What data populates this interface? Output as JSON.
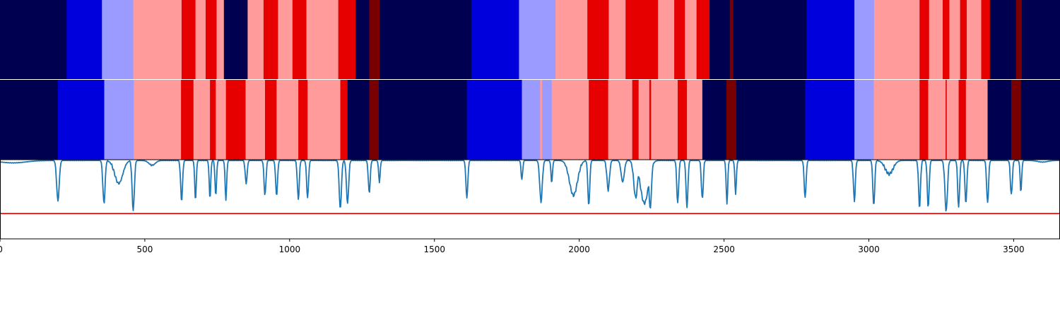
{
  "chart_data": {
    "type": "heatmap",
    "title": "",
    "xlabel": "",
    "ylabel": "",
    "xlim": [
      0,
      3660
    ],
    "xticks": [
      "0",
      "500",
      "1000",
      "1500",
      "2000",
      "2500",
      "3000",
      "3500"
    ],
    "xtick_values": [
      0,
      500,
      1000,
      1500,
      2000,
      2500,
      3000,
      3500
    ],
    "palette": {
      "0": "#000050",
      "1": "#0000dc",
      "2": "#9b9bff",
      "3": "#ff9b9b",
      "4": "#e60000",
      "5": "#780000"
    },
    "track_top": {
      "name": "",
      "segments": [
        [
          0,
          230,
          0
        ],
        [
          230,
          352,
          1
        ],
        [
          352,
          460,
          2
        ],
        [
          460,
          627,
          3
        ],
        [
          627,
          675,
          4
        ],
        [
          675,
          710,
          3
        ],
        [
          710,
          748,
          4
        ],
        [
          748,
          773,
          3
        ],
        [
          773,
          855,
          0
        ],
        [
          855,
          910,
          3
        ],
        [
          910,
          960,
          4
        ],
        [
          960,
          1010,
          3
        ],
        [
          1010,
          1058,
          4
        ],
        [
          1058,
          1168,
          3
        ],
        [
          1168,
          1228,
          4
        ],
        [
          1228,
          1275,
          0
        ],
        [
          1275,
          1312,
          5
        ],
        [
          1312,
          1628,
          0
        ],
        [
          1628,
          1792,
          1
        ],
        [
          1792,
          1918,
          2
        ],
        [
          1918,
          2028,
          3
        ],
        [
          2028,
          2102,
          4
        ],
        [
          2102,
          2160,
          3
        ],
        [
          2160,
          2272,
          4
        ],
        [
          2272,
          2328,
          3
        ],
        [
          2328,
          2365,
          4
        ],
        [
          2365,
          2405,
          3
        ],
        [
          2405,
          2450,
          4
        ],
        [
          2450,
          2520,
          0
        ],
        [
          2520,
          2532,
          5
        ],
        [
          2532,
          2785,
          0
        ],
        [
          2785,
          2950,
          1
        ],
        [
          2950,
          3018,
          2
        ],
        [
          3018,
          3175,
          3
        ],
        [
          3175,
          3208,
          4
        ],
        [
          3208,
          3255,
          3
        ],
        [
          3255,
          3278,
          4
        ],
        [
          3278,
          3315,
          3
        ],
        [
          3315,
          3338,
          4
        ],
        [
          3338,
          3388,
          3
        ],
        [
          3388,
          3418,
          4
        ],
        [
          3418,
          3508,
          0
        ],
        [
          3508,
          3528,
          5
        ],
        [
          3528,
          3660,
          0
        ]
      ]
    },
    "track_bottom": {
      "name": "",
      "segments": [
        [
          0,
          200,
          0
        ],
        [
          200,
          360,
          1
        ],
        [
          360,
          462,
          2
        ],
        [
          462,
          625,
          3
        ],
        [
          625,
          668,
          4
        ],
        [
          668,
          725,
          3
        ],
        [
          725,
          745,
          4
        ],
        [
          745,
          780,
          3
        ],
        [
          780,
          848,
          4
        ],
        [
          848,
          915,
          3
        ],
        [
          915,
          955,
          4
        ],
        [
          955,
          1030,
          3
        ],
        [
          1030,
          1062,
          4
        ],
        [
          1062,
          1175,
          3
        ],
        [
          1175,
          1200,
          4
        ],
        [
          1200,
          1275,
          0
        ],
        [
          1275,
          1308,
          5
        ],
        [
          1308,
          1612,
          0
        ],
        [
          1612,
          1802,
          1
        ],
        [
          1802,
          1865,
          2
        ],
        [
          1865,
          1872,
          3
        ],
        [
          1872,
          1905,
          2
        ],
        [
          1905,
          2033,
          3
        ],
        [
          2033,
          2100,
          4
        ],
        [
          2100,
          2183,
          3
        ],
        [
          2183,
          2205,
          4
        ],
        [
          2205,
          2242,
          3
        ],
        [
          2242,
          2248,
          4
        ],
        [
          2248,
          2340,
          3
        ],
        [
          2340,
          2372,
          4
        ],
        [
          2372,
          2425,
          3
        ],
        [
          2425,
          2508,
          0
        ],
        [
          2508,
          2542,
          5
        ],
        [
          2542,
          2780,
          0
        ],
        [
          2780,
          2950,
          1
        ],
        [
          2950,
          3017,
          2
        ],
        [
          3017,
          3175,
          3
        ],
        [
          3175,
          3205,
          4
        ],
        [
          3205,
          3265,
          3
        ],
        [
          3265,
          3269,
          4
        ],
        [
          3269,
          3310,
          3
        ],
        [
          3310,
          3335,
          4
        ],
        [
          3335,
          3410,
          3
        ],
        [
          3410,
          3492,
          0
        ],
        [
          3492,
          3525,
          5
        ],
        [
          3525,
          3660,
          0
        ]
      ]
    },
    "line_series": {
      "name": "",
      "color": "#1f77b4",
      "ylim": [
        0,
        1
      ],
      "threshold": 0.32,
      "threshold_color": "#e60000",
      "baseline": 0.99,
      "dips": [
        [
          45,
          80,
          0.96
        ],
        [
          200,
          8,
          0.48
        ],
        [
          359,
          7,
          0.45
        ],
        [
          410,
          25,
          0.7
        ],
        [
          460,
          7,
          0.36
        ],
        [
          525,
          20,
          0.93
        ],
        [
          627,
          6,
          0.48
        ],
        [
          675,
          5,
          0.5
        ],
        [
          725,
          5,
          0.52
        ],
        [
          745,
          5,
          0.55
        ],
        [
          780,
          5,
          0.5
        ],
        [
          850,
          6,
          0.7
        ],
        [
          915,
          6,
          0.55
        ],
        [
          955,
          6,
          0.55
        ],
        [
          1030,
          6,
          0.5
        ],
        [
          1062,
          6,
          0.52
        ],
        [
          1175,
          7,
          0.38
        ],
        [
          1200,
          7,
          0.45
        ],
        [
          1275,
          6,
          0.58
        ],
        [
          1310,
          5,
          0.72
        ],
        [
          1612,
          6,
          0.52
        ],
        [
          1802,
          5,
          0.75
        ],
        [
          1868,
          8,
          0.47
        ],
        [
          1905,
          5,
          0.72
        ],
        [
          1980,
          25,
          0.55
        ],
        [
          2033,
          6,
          0.42
        ],
        [
          2100,
          8,
          0.62
        ],
        [
          2150,
          10,
          0.72
        ],
        [
          2195,
          12,
          0.52
        ],
        [
          2225,
          25,
          0.45
        ],
        [
          2245,
          8,
          0.38
        ],
        [
          2340,
          6,
          0.45
        ],
        [
          2372,
          6,
          0.4
        ],
        [
          2425,
          6,
          0.5
        ],
        [
          2510,
          5,
          0.45
        ],
        [
          2540,
          5,
          0.58
        ],
        [
          2780,
          6,
          0.52
        ],
        [
          2950,
          6,
          0.48
        ],
        [
          3017,
          6,
          0.42
        ],
        [
          3070,
          25,
          0.82
        ],
        [
          3175,
          6,
          0.4
        ],
        [
          3205,
          6,
          0.4
        ],
        [
          3267,
          8,
          0.35
        ],
        [
          3310,
          6,
          0.4
        ],
        [
          3335,
          6,
          0.45
        ],
        [
          3410,
          6,
          0.45
        ],
        [
          3492,
          6,
          0.55
        ],
        [
          3525,
          5,
          0.6
        ],
        [
          3600,
          30,
          0.97
        ]
      ]
    }
  }
}
